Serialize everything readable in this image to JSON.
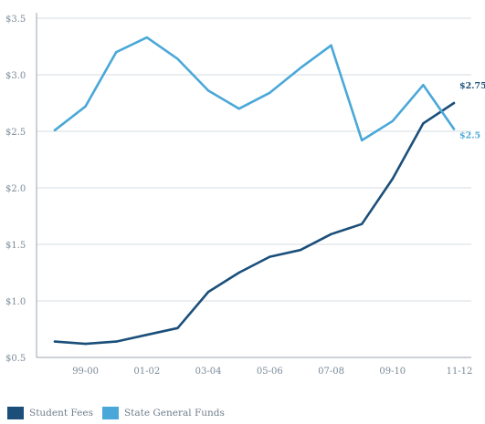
{
  "chart_data": {
    "type": "line",
    "title": "",
    "xlabel": "",
    "ylabel": "",
    "x_ticks": [
      "99-00",
      "01-02",
      "03-04",
      "05-06",
      "07-08",
      "09-10",
      "11-12"
    ],
    "y_ticks": [
      "$0.5",
      "$1.0",
      "$1.5",
      "$2.0",
      "$2.5",
      "$3.0",
      "$3.5"
    ],
    "ylim": [
      0.5,
      3.5
    ],
    "grid": "horizontal",
    "legend_position": "bottom-left",
    "series": [
      {
        "name": "Student Fees",
        "color": "#1b4f7a",
        "end_label": "$2.75",
        "values": [
          0.64,
          0.62,
          0.64,
          0.7,
          0.76,
          1.08,
          1.25,
          1.39,
          1.45,
          1.59,
          1.68,
          2.08,
          2.57,
          2.75
        ]
      },
      {
        "name": "State General Funds",
        "color": "#4aa8d8",
        "end_label": "$2.5",
        "values": [
          2.51,
          2.72,
          3.2,
          3.33,
          3.14,
          2.86,
          2.7,
          2.84,
          3.06,
          3.26,
          2.42,
          2.59,
          2.91,
          2.52
        ]
      }
    ]
  }
}
